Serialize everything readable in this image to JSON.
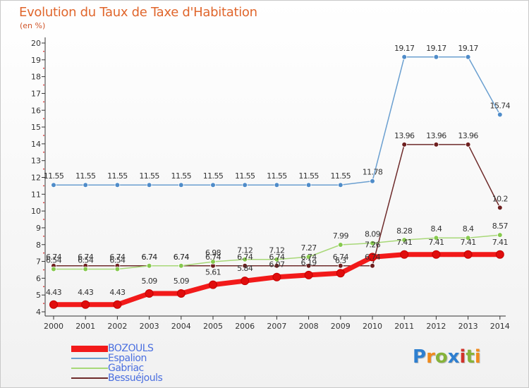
{
  "title": "Evolution du Taux de Taxe d'Habitation",
  "subtitle": "(en %)",
  "logo": {
    "text": "Proxiti",
    "colors": [
      "#2e7fd0",
      "#f08a1c",
      "#86b33a",
      "#2e7fd0",
      "#d2332a",
      "#86b33a",
      "#f08a1c"
    ]
  },
  "chart_data": {
    "type": "line",
    "x": [
      "2000",
      "2001",
      "2002",
      "2003",
      "2004",
      "2005",
      "2006",
      "2007",
      "2008",
      "2009",
      "2010",
      "2011",
      "2012",
      "2013",
      "2014"
    ],
    "ylim": [
      4,
      20
    ],
    "yticks": [
      "4",
      "5",
      "6",
      "7",
      "8",
      "9",
      "10",
      "11",
      "12",
      "13",
      "14",
      "15",
      "16",
      "17",
      "18",
      "19",
      "20"
    ],
    "grid": false,
    "legend_position": "bottom-left",
    "series": [
      {
        "name": "Espalion",
        "color": "#6a9fd0",
        "marker": "#4f8cc9",
        "width": 1.5,
        "values": [
          11.55,
          11.55,
          11.55,
          11.55,
          11.55,
          11.55,
          11.55,
          11.55,
          11.55,
          11.55,
          11.78,
          19.17,
          19.17,
          19.17,
          15.74
        ],
        "labels": [
          "11.55",
          "11.55",
          "11.55",
          "11.55",
          "11.55",
          "11.55",
          "11.55",
          "11.55",
          "11.55",
          "11.55",
          "11.78",
          "19.17",
          "19.17",
          "19.17",
          "15.74"
        ]
      },
      {
        "name": "Bessuéjouls",
        "color": "#6e2b2b",
        "marker": "#6e1f1f",
        "width": 1.5,
        "values": [
          6.74,
          6.74,
          6.74,
          6.74,
          6.74,
          6.74,
          6.74,
          6.74,
          6.74,
          6.74,
          6.74,
          13.96,
          13.96,
          13.96,
          10.2
        ],
        "labels": [
          "6.74",
          "6.74",
          "6.74",
          "6.74",
          "6.74",
          "6.74",
          "6.74",
          "6.74",
          "6.74",
          "6.74",
          "6.74",
          "13.96",
          "13.96",
          "13.96",
          "10.2"
        ]
      },
      {
        "name": "Gabriac",
        "color": "#a8d878",
        "marker": "#86c94e",
        "width": 1.5,
        "values": [
          6.54,
          6.54,
          6.54,
          6.74,
          6.74,
          6.98,
          7.12,
          7.12,
          7.27,
          7.99,
          8.09,
          8.28,
          8.4,
          8.4,
          8.57
        ],
        "labels": [
          "6.54",
          "6.54",
          "6.54",
          "6.74",
          "6.74",
          "6.98",
          "7.12",
          "7.12",
          "7.27",
          "7.99",
          "8.09",
          "8.28",
          "8.4",
          "8.4",
          "8.57"
        ]
      },
      {
        "name": "BOZOULS",
        "color": "#f21a1a",
        "marker": "#e00d0d",
        "width": 7,
        "values": [
          4.43,
          4.43,
          4.43,
          5.09,
          5.09,
          5.61,
          5.84,
          6.07,
          6.19,
          6.3,
          7.26,
          7.41,
          7.41,
          7.41,
          7.41
        ],
        "labels": [
          "4.43",
          "4.43",
          "4.43",
          "5.09",
          "5.09",
          "5.61",
          "5.84",
          "6.07",
          "6.19",
          "6.3",
          "7.26",
          "7.41",
          "7.41",
          "7.41",
          "7.41"
        ]
      }
    ],
    "legend_order": [
      "BOZOULS",
      "Espalion",
      "Gabriac",
      "Bessuéjouls"
    ]
  }
}
